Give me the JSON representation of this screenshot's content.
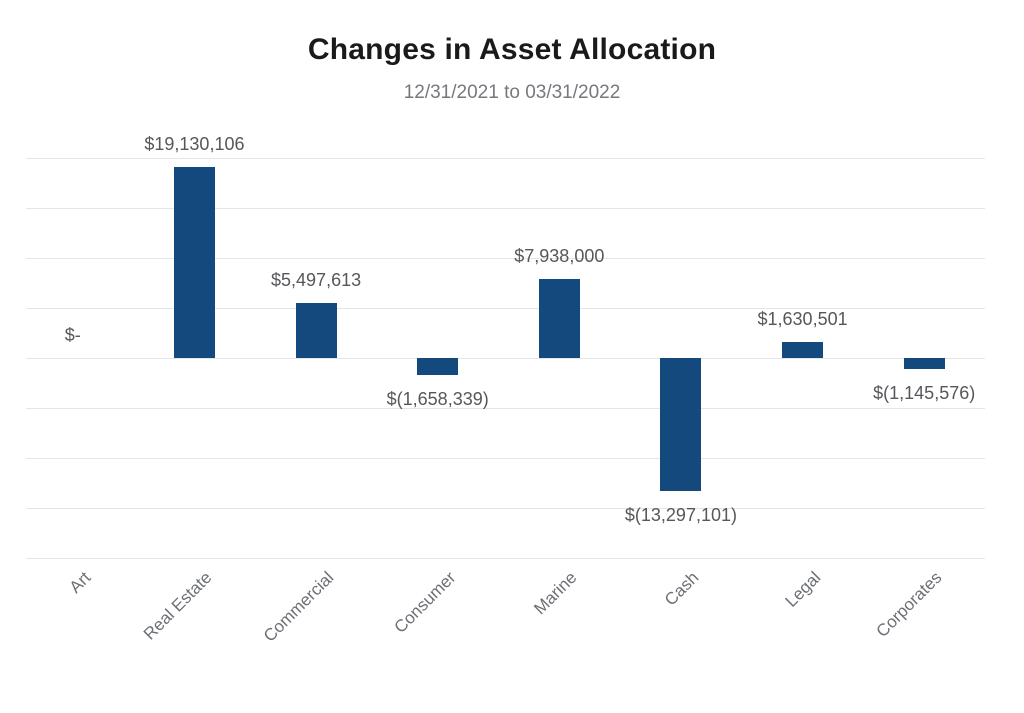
{
  "header": {
    "title": "Changes in Asset Allocation",
    "subtitle": "12/31/2021 to 03/31/2022"
  },
  "chart_data": {
    "type": "bar",
    "title": "Changes in Asset Allocation",
    "subtitle": "12/31/2021 to 03/31/2022",
    "categories": [
      "Art",
      "Real Estate",
      "Commercial",
      "Consumer",
      "Marine",
      "Cash",
      "Legal",
      "Corporates"
    ],
    "values": [
      0,
      19130106,
      5497613,
      -1658339,
      7938000,
      -13297101,
      1630501,
      -1145576
    ],
    "data_labels": [
      "$-",
      "$19,130,106",
      "$5,497,613",
      "$(1,658,339)",
      "$7,938,000",
      "$(13,297,101)",
      "$1,630,501",
      "$(1,145,576)"
    ],
    "xlabel": "",
    "ylabel": "",
    "ylim": [
      -20000000,
      20000000
    ],
    "gridline_interval": 5000000,
    "grid": true,
    "legend": false,
    "y_axis_tick_labels_visible": false,
    "colors": {
      "bar": "#14497d",
      "gridline": "#e2e6eb",
      "data_label": "#55575b",
      "category_label": "#6c7076",
      "title": "#1a1a1a",
      "subtitle": "#75787e"
    }
  }
}
